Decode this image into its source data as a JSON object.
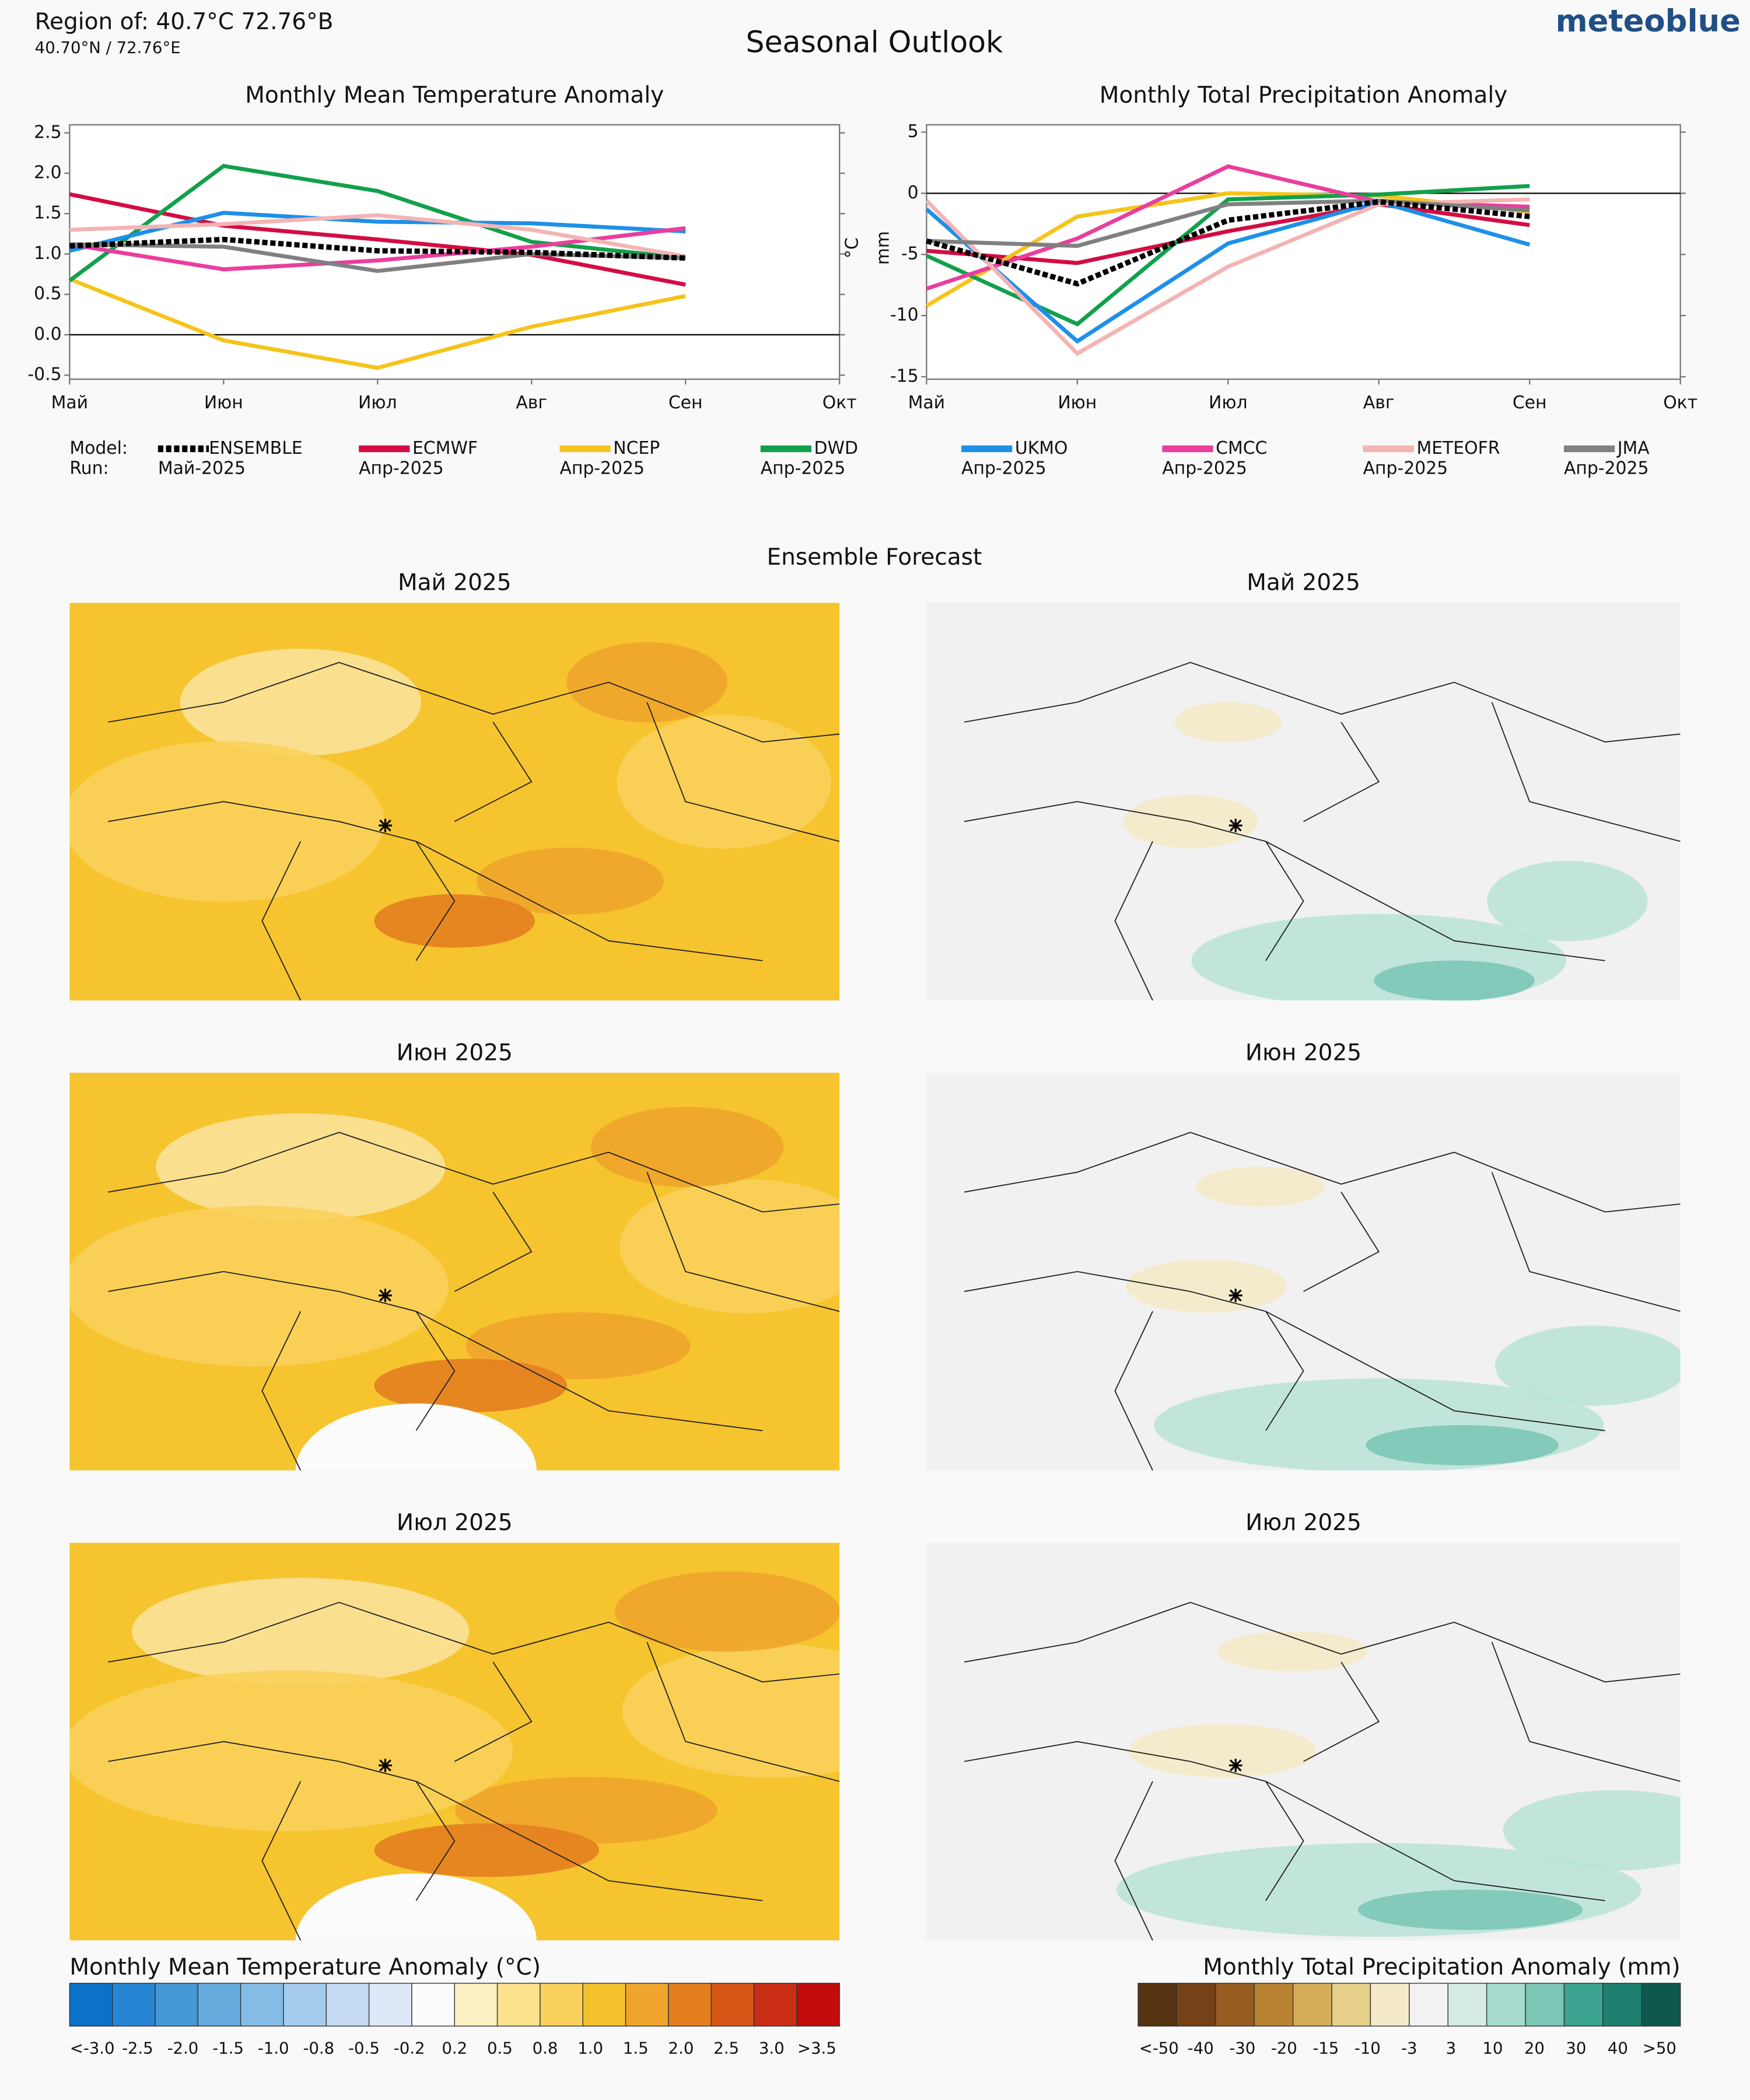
{
  "header": {
    "region": "Region of: 40.7°C 72.76°B",
    "coords": "40.70°N / 72.76°E",
    "title": "Seasonal Outlook",
    "brand": "meteoblue"
  },
  "legend": {
    "model_label": "Model:",
    "run_label": "Run:"
  },
  "chart_data": [
    {
      "type": "line",
      "title": "Monthly Mean Temperature Anomaly",
      "ylabel": "°C",
      "categories": [
        "Май",
        "Июн",
        "Июл",
        "Авг",
        "Сен",
        "Окт"
      ],
      "ylim": [
        -0.55,
        2.6
      ],
      "yticks": [
        -0.5,
        {
          "value": 0,
          "label": "0.0"
        },
        0.5,
        {
          "value": 1,
          "label": "1.0"
        },
        1.5,
        {
          "value": 2,
          "label": "2.0"
        },
        2.5
      ],
      "series": [
        {
          "name": "ENSEMBLE",
          "run": "Май-2025",
          "color": "#000000",
          "dashed": true,
          "values": [
            1.1,
            1.18,
            1.04,
            1.02,
            0.95,
            null
          ]
        },
        {
          "name": "ECMWF",
          "run": "Апр-2025",
          "color": "#d40c44",
          "values": [
            1.74,
            1.35,
            1.18,
            0.99,
            0.62,
            null
          ]
        },
        {
          "name": "NCEP",
          "run": "Апр-2025",
          "color": "#f5c41c",
          "values": [
            0.69,
            -0.07,
            -0.41,
            0.1,
            0.48,
            null
          ]
        },
        {
          "name": "DWD",
          "run": "Апр-2025",
          "color": "#12a04c",
          "values": [
            0.67,
            2.09,
            1.78,
            1.15,
            0.95,
            null
          ]
        },
        {
          "name": "UKMO",
          "run": "Апр-2025",
          "color": "#1e90e8",
          "values": [
            1.04,
            1.51,
            1.4,
            1.38,
            1.28,
            null
          ]
        },
        {
          "name": "CMCC",
          "run": "Апр-2025",
          "color": "#ea3e9d",
          "values": [
            1.12,
            0.81,
            0.92,
            1.09,
            1.32,
            null
          ]
        },
        {
          "name": "METEOFR",
          "run": "Апр-2025",
          "color": "#f4b4b4",
          "values": [
            1.3,
            1.37,
            1.48,
            1.3,
            0.97,
            null
          ]
        },
        {
          "name": "JMA",
          "run": "Апр-2025",
          "color": "#808080",
          "values": [
            1.12,
            1.09,
            0.79,
            1.0,
            0.95,
            null
          ]
        }
      ]
    },
    {
      "type": "line",
      "title": "Monthly Total Precipitation Anomaly",
      "ylabel": "mm",
      "categories": [
        "Май",
        "Июн",
        "Июл",
        "Авг",
        "Сен",
        "Окт"
      ],
      "ylim": [
        -15.2,
        5.6
      ],
      "yticks": [
        -15,
        -10,
        -5,
        0,
        5
      ],
      "series": [
        {
          "name": "ENSEMBLE",
          "run": "Май-2025",
          "color": "#000000",
          "dashed": true,
          "values": [
            -3.9,
            -7.4,
            -2.2,
            -0.7,
            -1.9,
            null
          ]
        },
        {
          "name": "ECMWF",
          "run": "Апр-2025",
          "color": "#d40c44",
          "values": [
            -4.7,
            -5.7,
            -3.1,
            -0.9,
            -2.6,
            null
          ]
        },
        {
          "name": "NCEP",
          "run": "Апр-2025",
          "color": "#f5c41c",
          "values": [
            -9.2,
            -1.9,
            0,
            -0.2,
            -1.5,
            null
          ]
        },
        {
          "name": "DWD",
          "run": "Апр-2025",
          "color": "#12a04c",
          "values": [
            -5.1,
            -10.7,
            -0.5,
            -0.1,
            0.6,
            null
          ]
        },
        {
          "name": "UKMO",
          "run": "Апр-2025",
          "color": "#1e90e8",
          "values": [
            -1.3,
            -12.1,
            -4.1,
            -0.7,
            -4.2,
            null
          ]
        },
        {
          "name": "CMCC",
          "run": "Апр-2025",
          "color": "#ea3e9d",
          "values": [
            -7.8,
            -3.7,
            2.2,
            -0.7,
            -1.1,
            null
          ]
        },
        {
          "name": "METEOFR",
          "run": "Апр-2025",
          "color": "#f4b4b4",
          "values": [
            -0.6,
            -13.1,
            -6.0,
            -0.9,
            -0.5,
            null
          ]
        },
        {
          "name": "JMA",
          "run": "Апр-2025",
          "color": "#808080",
          "values": [
            -3.9,
            -4.3,
            -0.9,
            -0.6,
            -1.4,
            null
          ]
        }
      ]
    }
  ],
  "ensemble": {
    "title": "Ensemble Forecast",
    "temperature_maps": [
      "Май 2025",
      "Июн 2025",
      "Июл 2025"
    ],
    "precipitation_maps": [
      "Май 2025",
      "Июн 2025",
      "Июл 2025"
    ]
  },
  "colorbars": [
    {
      "title": "Monthly Mean Temperature Anomaly (°C)",
      "colors": [
        "#0a72c8",
        "#2686d4",
        "#4598d6",
        "#66abdd",
        "#86bde6",
        "#a6cdee",
        "#c4dbf3",
        "#dfe8f8",
        "#fbfbfb",
        "#fbf0c2",
        "#fbe18c",
        "#f9d15a",
        "#f5c22d",
        "#efa52c",
        "#e47f20",
        "#d85718",
        "#c92e14",
        "#c20b0b"
      ],
      "labels": [
        "<-3.0",
        "-2.5",
        "-2.0",
        "-1.5",
        "-1.0",
        "-0.8",
        "-0.5",
        "-0.2",
        "0.2",
        "0.5",
        "0.8",
        "1.0",
        "1.5",
        "2.0",
        "2.5",
        "3.0",
        ">3.5"
      ]
    },
    {
      "title": "Monthly Total Precipitation Anomaly (mm)",
      "colors": [
        "#553310",
        "#774118",
        "#965c20",
        "#b98231",
        "#d5ac58",
        "#e5cf89",
        "#f4eac9",
        "#f2f2f2",
        "#d4ece4",
        "#a7dbcd",
        "#7cc6b6",
        "#3ba38f",
        "#1e8070",
        "#0d5a4c"
      ],
      "labels": [
        "<-50",
        "-40",
        "-30",
        "-20",
        "-15",
        "-10",
        "-3",
        "3",
        "10",
        "20",
        "30",
        "40",
        ">50"
      ]
    }
  ]
}
